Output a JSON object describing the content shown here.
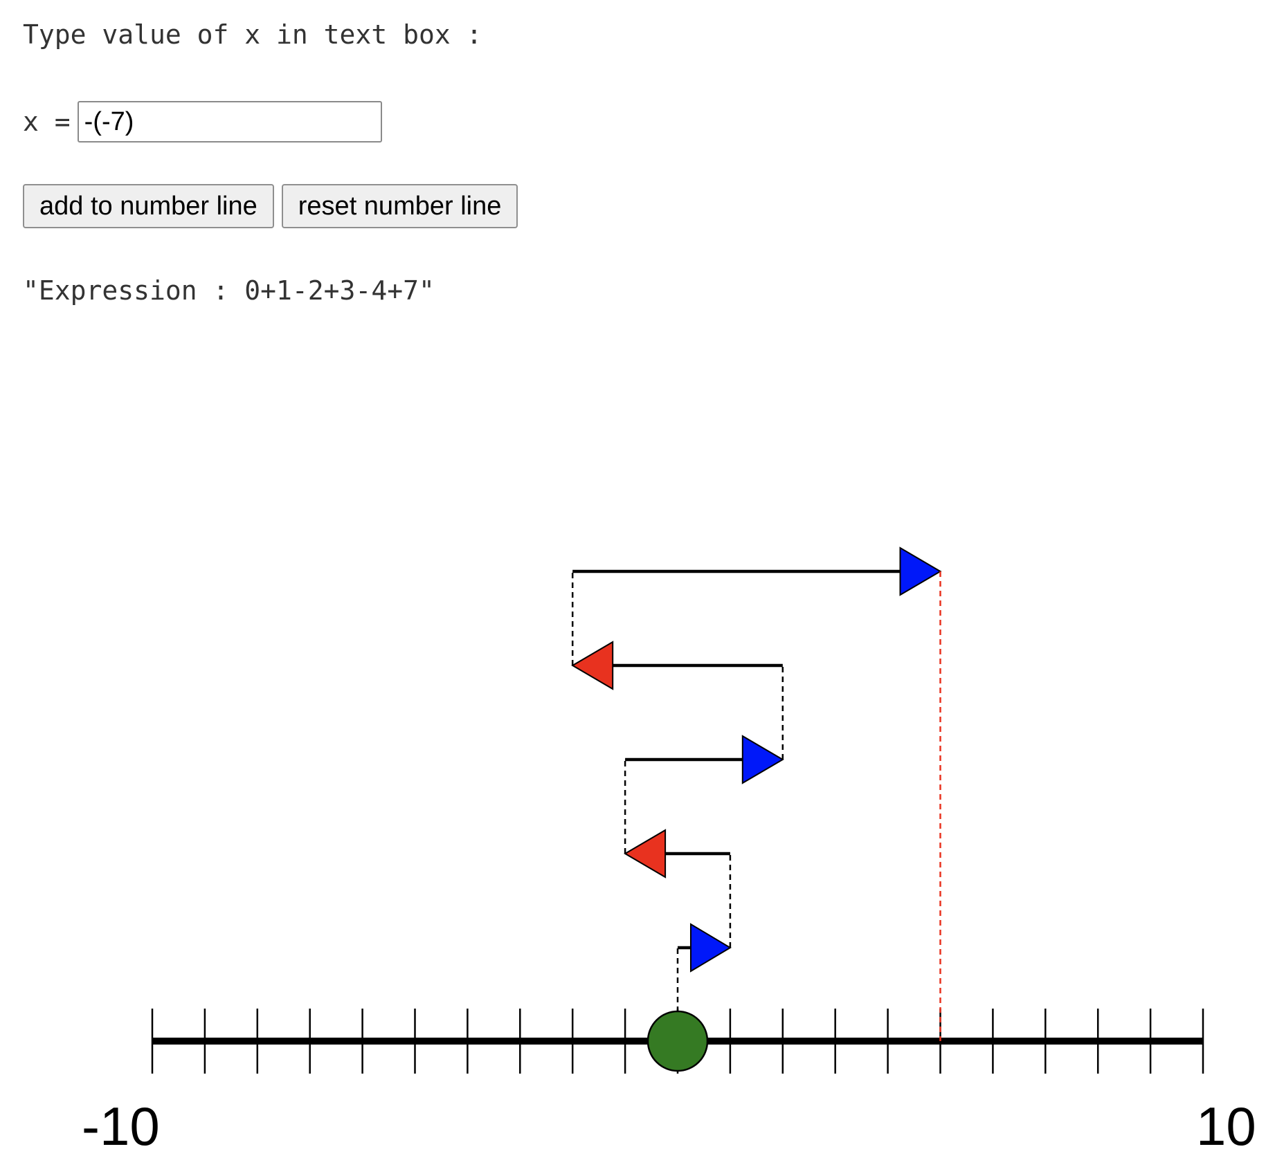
{
  "prompt": "Type value of x in text box :",
  "input": {
    "label": "x =",
    "value": "-(-7)"
  },
  "buttons": {
    "add": "add to number line",
    "reset": "reset number line"
  },
  "expression": "\"Expression : 0+1-2+3-4+7\"",
  "number_line": {
    "min": -10,
    "max": 10,
    "min_label": "-10",
    "max_label": "10",
    "start": 0,
    "steps": [
      1,
      -2,
      3,
      -4,
      7
    ],
    "result": 5,
    "colors": {
      "positive": "#0018f9",
      "negative": "#e8321f",
      "start_marker": "#357a23",
      "result_line": "#e8321f"
    }
  }
}
